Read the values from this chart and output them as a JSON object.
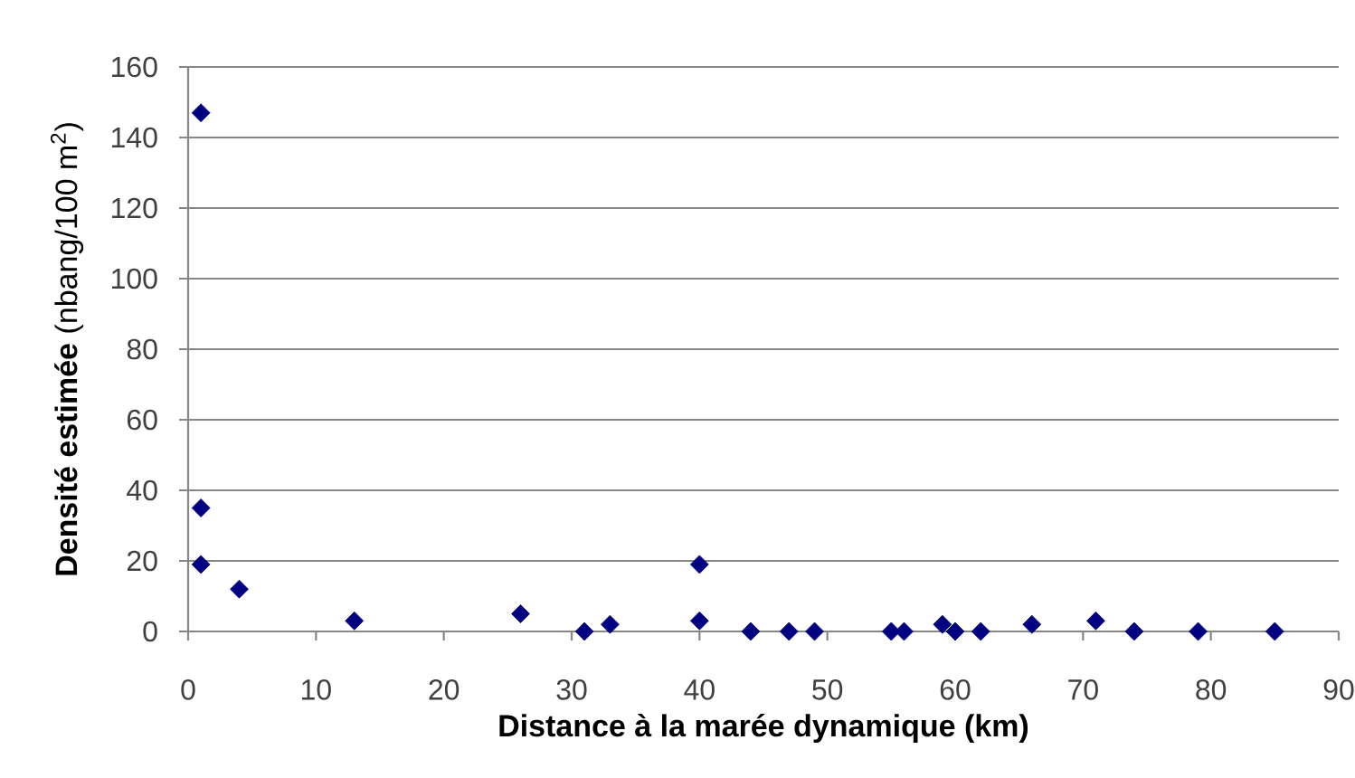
{
  "chart_data": {
    "type": "scatter",
    "xlabel": "Distance à la marée dynamique (km)",
    "ylabel": "**Densité estimée** (nbang/100 m$^{2}$)",
    "x": [
      1,
      1,
      1,
      4,
      13,
      26,
      31,
      33,
      40,
      40,
      44,
      47,
      49,
      55,
      56,
      59,
      60,
      62,
      66,
      71,
      74,
      79,
      85
    ],
    "values": [
      147,
      35,
      19,
      12,
      3,
      5,
      0,
      2,
      19,
      3,
      0,
      0,
      0,
      0,
      0,
      2,
      0,
      0,
      2,
      3,
      0,
      0,
      0
    ],
    "color": "#000080",
    "xlim": [
      0,
      90
    ],
    "xticks": [
      0,
      10,
      20,
      30,
      40,
      50,
      60,
      70,
      80,
      90
    ],
    "ylim": [
      0,
      160
    ],
    "yticks": [
      0,
      20,
      40,
      60,
      80,
      100,
      120,
      140,
      160
    ],
    "grid": "y",
    "marker": "diamond"
  }
}
